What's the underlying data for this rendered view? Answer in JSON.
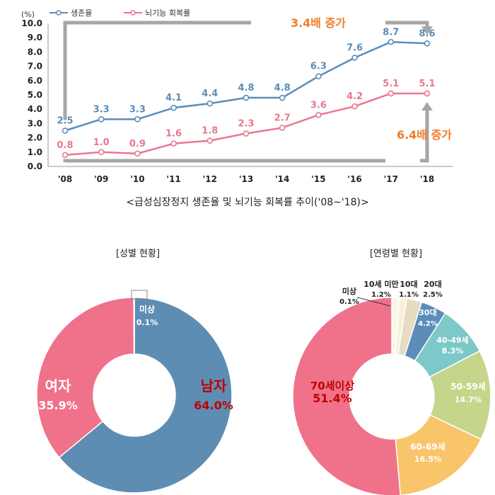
{
  "line_chart_caption": "<급성심장정지 생존율 및 뇌기능 회복률 추이('08~'18)>",
  "sex_caption": "[성별 현황]",
  "age_caption": "[연령별 현황]",
  "colors": {
    "survival": "#5B8DB8",
    "brain": "#E8788E",
    "annotation": "#F07D28",
    "arrow": "#A6A6A6",
    "male": "#5E8DB3",
    "female": "#F0728A",
    "unknown": "#FFFFFF",
    "age_70plus": "#F0728A",
    "age_60_69": "#F9C56A",
    "age_50_59": "#C5D68B",
    "age_40_49": "#7DC8C8",
    "age_30s": "#5B8DB8",
    "age_20s": "#E6DCC3",
    "age_10s": "#F6F0D9",
    "age_under10": "#FBF6E6",
    "age_unknown": "#FFFFFF"
  },
  "chart_data": [
    {
      "type": "line",
      "ylabel": "(%)",
      "ylim": [
        0,
        10
      ],
      "y_ticks": [
        "0.0",
        "1.0",
        "2.0",
        "3.0",
        "4.0",
        "5.0",
        "6.0",
        "7.0",
        "8.0",
        "9.0",
        "10.0"
      ],
      "categories": [
        "'08",
        "'09",
        "'10",
        "'11",
        "'12",
        "'13",
        "'14",
        "'15",
        "'16",
        "'17",
        "'18"
      ],
      "grid": false,
      "legend_position": "top-left",
      "series": [
        {
          "name": "생존율",
          "values": [
            2.5,
            3.3,
            3.3,
            4.1,
            4.4,
            4.8,
            4.8,
            6.3,
            7.6,
            8.7,
            8.6
          ],
          "labels": [
            "2.5",
            "3.3",
            "3.3",
            "4.1",
            "4.4",
            "4.8",
            "4.8",
            "6.3",
            "7.6",
            "8.7",
            "8.6"
          ]
        },
        {
          "name": "뇌기능 회복률",
          "values": [
            0.8,
            1.0,
            0.9,
            1.6,
            1.8,
            2.3,
            2.7,
            3.6,
            4.2,
            5.1,
            5.1
          ],
          "labels": [
            "0.8",
            "1.0",
            "0.9",
            "1.6",
            "1.8",
            "2.3",
            "2.7",
            "3.6",
            "4.2",
            "5.1",
            "5.1"
          ]
        }
      ],
      "annotations": [
        "3.4배 증가",
        "6.4배 증가"
      ]
    },
    {
      "type": "pie",
      "slices": [
        {
          "name": "남자",
          "value": 64.0,
          "label": "64.0%"
        },
        {
          "name": "여자",
          "value": 35.9,
          "label": "35.9%"
        },
        {
          "name": "미상",
          "value": 0.1,
          "label": "0.1%"
        }
      ]
    },
    {
      "type": "pie",
      "slices": [
        {
          "name": "70세이상",
          "value": 51.4,
          "label": "51.4%"
        },
        {
          "name": "60-69세",
          "value": 16.5,
          "label": "16.5%"
        },
        {
          "name": "50-59세",
          "value": 14.7,
          "label": "14.7%"
        },
        {
          "name": "40-49세",
          "value": 8.3,
          "label": "8.3%"
        },
        {
          "name": "30대",
          "value": 4.2,
          "label": "4.2%"
        },
        {
          "name": "20대",
          "value": 2.5,
          "label": "2.5%"
        },
        {
          "name": "10대",
          "value": 1.1,
          "label": "1.1%"
        },
        {
          "name": "10세 미만",
          "value": 1.2,
          "label": "1.2%"
        },
        {
          "name": "미상",
          "value": 0.1,
          "label": "0.1%"
        }
      ]
    }
  ]
}
